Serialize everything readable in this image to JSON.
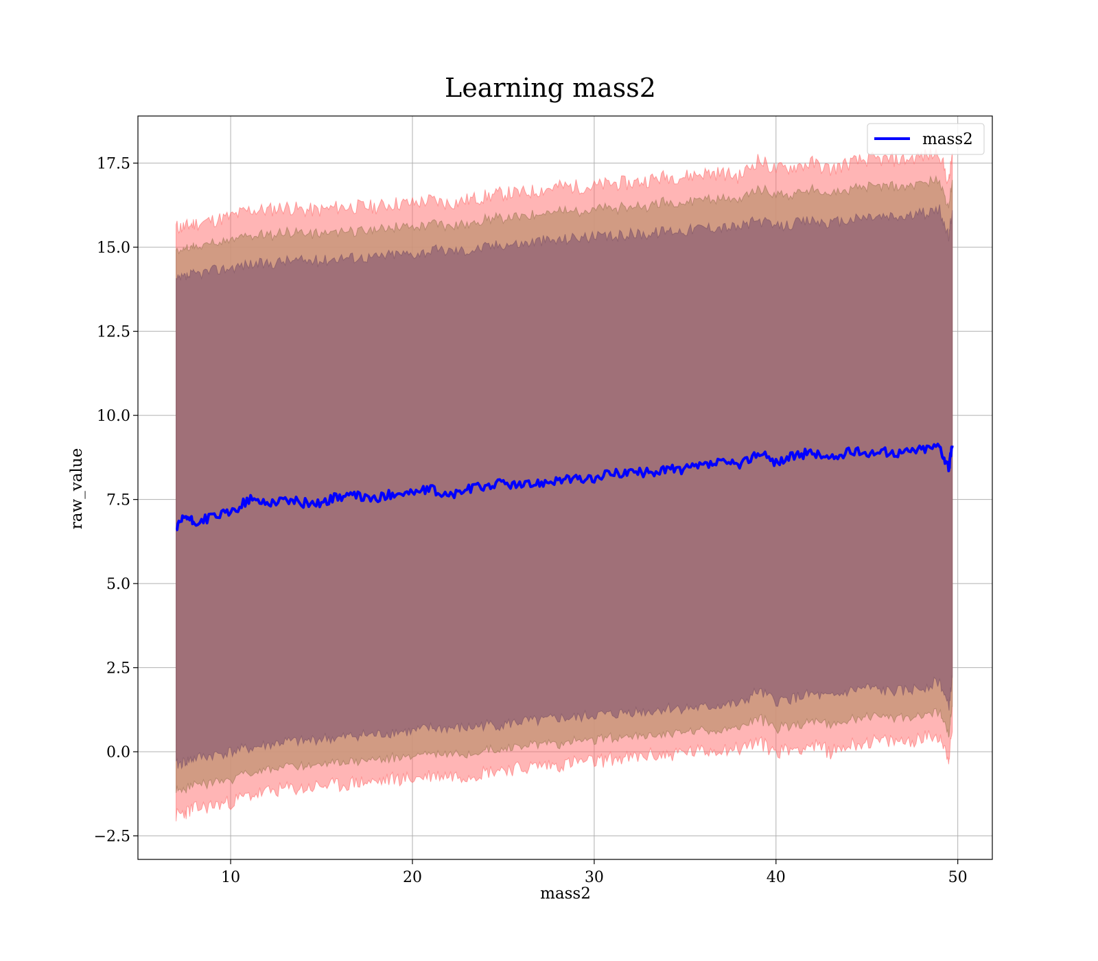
{
  "chart_data": {
    "type": "line",
    "title": "Learning mass2",
    "xlabel": "mass2",
    "ylabel": "raw_value",
    "xlim": [
      4.9,
      51.9
    ],
    "ylim": [
      -3.2,
      18.9
    ],
    "xticks": [
      10,
      20,
      30,
      40,
      50
    ],
    "xtick_labels": [
      "10",
      "20",
      "30",
      "40",
      "50"
    ],
    "yticks": [
      -2.5,
      0.0,
      2.5,
      5.0,
      7.5,
      10.0,
      12.5,
      15.0,
      17.5
    ],
    "ytick_labels": [
      "−2.5",
      "0.0",
      "2.5",
      "5.0",
      "7.5",
      "10.0",
      "12.5",
      "15.0",
      "17.5"
    ],
    "grid": true,
    "legend": {
      "position": "top-right",
      "entries": [
        "mass2"
      ]
    },
    "series": [
      {
        "name": "mass2",
        "color": "#0000ff",
        "x": [
          7.0,
          7.5,
          8.0,
          9.0,
          10.0,
          11.0,
          12.0,
          13.0,
          14.0,
          15.0,
          16.0,
          17.0,
          18.0,
          19.0,
          20.0,
          21.0,
          22.0,
          23.0,
          24.0,
          25.0,
          26.0,
          27.0,
          28.0,
          29.0,
          30.0,
          31.0,
          32.0,
          33.0,
          34.0,
          35.0,
          36.0,
          37.0,
          38.0,
          39.0,
          40.0,
          41.0,
          42.0,
          43.0,
          44.0,
          45.0,
          46.0,
          47.0,
          48.0,
          49.0,
          49.5,
          49.7
        ],
        "y": [
          6.6,
          7.0,
          6.8,
          7.0,
          7.1,
          7.5,
          7.4,
          7.5,
          7.4,
          7.4,
          7.6,
          7.6,
          7.5,
          7.7,
          7.7,
          7.8,
          7.6,
          7.8,
          7.9,
          8.0,
          7.9,
          8.0,
          8.1,
          8.1,
          8.1,
          8.3,
          8.3,
          8.3,
          8.4,
          8.4,
          8.5,
          8.6,
          8.5,
          8.9,
          8.6,
          8.8,
          8.9,
          8.7,
          8.9,
          8.9,
          8.9,
          8.9,
          9.0,
          9.1,
          8.4,
          9.1
        ],
        "band_inner_upper": [
          14.0,
          14.1,
          14.2,
          14.3,
          14.4,
          14.5,
          14.5,
          14.6,
          14.6,
          14.6,
          14.7,
          14.7,
          14.7,
          14.8,
          14.8,
          14.9,
          14.9,
          14.9,
          15.0,
          15.1,
          15.1,
          15.2,
          15.2,
          15.3,
          15.3,
          15.3,
          15.4,
          15.4,
          15.5,
          15.5,
          15.6,
          15.6,
          15.6,
          15.8,
          15.6,
          15.7,
          15.8,
          15.7,
          15.8,
          15.9,
          15.9,
          15.9,
          16.0,
          16.1,
          15.3,
          16.1
        ],
        "band_inner_lower": [
          -0.4,
          -0.3,
          -0.2,
          -0.1,
          0.0,
          0.1,
          0.2,
          0.3,
          0.3,
          0.4,
          0.4,
          0.5,
          0.5,
          0.6,
          0.6,
          0.7,
          0.7,
          0.7,
          0.8,
          0.8,
          0.9,
          0.9,
          1.0,
          1.0,
          1.1,
          1.1,
          1.2,
          1.2,
          1.3,
          1.3,
          1.3,
          1.4,
          1.4,
          1.8,
          1.5,
          1.6,
          1.7,
          1.6,
          1.8,
          1.9,
          1.8,
          1.8,
          1.9,
          2.1,
          1.3,
          2.2
        ],
        "band_outer_upper": [
          15.6,
          15.6,
          15.7,
          15.8,
          15.9,
          16.1,
          16.1,
          16.2,
          16.1,
          16.1,
          16.2,
          16.2,
          16.2,
          16.3,
          16.3,
          16.4,
          16.3,
          16.4,
          16.5,
          16.6,
          16.6,
          16.7,
          16.8,
          16.8,
          16.8,
          16.9,
          16.9,
          17.0,
          17.1,
          17.1,
          17.2,
          17.2,
          17.1,
          17.6,
          17.3,
          17.4,
          17.5,
          17.3,
          17.5,
          17.6,
          17.6,
          17.6,
          17.7,
          17.8,
          16.9,
          17.8
        ],
        "band_outer_lower": [
          -1.9,
          -1.8,
          -1.7,
          -1.6,
          -1.5,
          -1.3,
          -1.2,
          -1.1,
          -1.1,
          -1.0,
          -1.0,
          -0.9,
          -0.9,
          -0.8,
          -0.8,
          -0.7,
          -0.7,
          -0.7,
          -0.6,
          -0.5,
          -0.5,
          -0.4,
          -0.4,
          -0.3,
          -0.3,
          -0.2,
          -0.2,
          -0.1,
          -0.1,
          0.0,
          0.0,
          0.1,
          0.1,
          0.3,
          0.0,
          0.1,
          0.2,
          0.0,
          0.2,
          0.3,
          0.3,
          0.3,
          0.4,
          0.5,
          -0.2,
          0.6
        ]
      }
    ],
    "colors": {
      "outer_band": "#ff6b6b",
      "mid_band": "#c9967a",
      "inner_band": "#a07078",
      "line": "#0000ff"
    }
  }
}
